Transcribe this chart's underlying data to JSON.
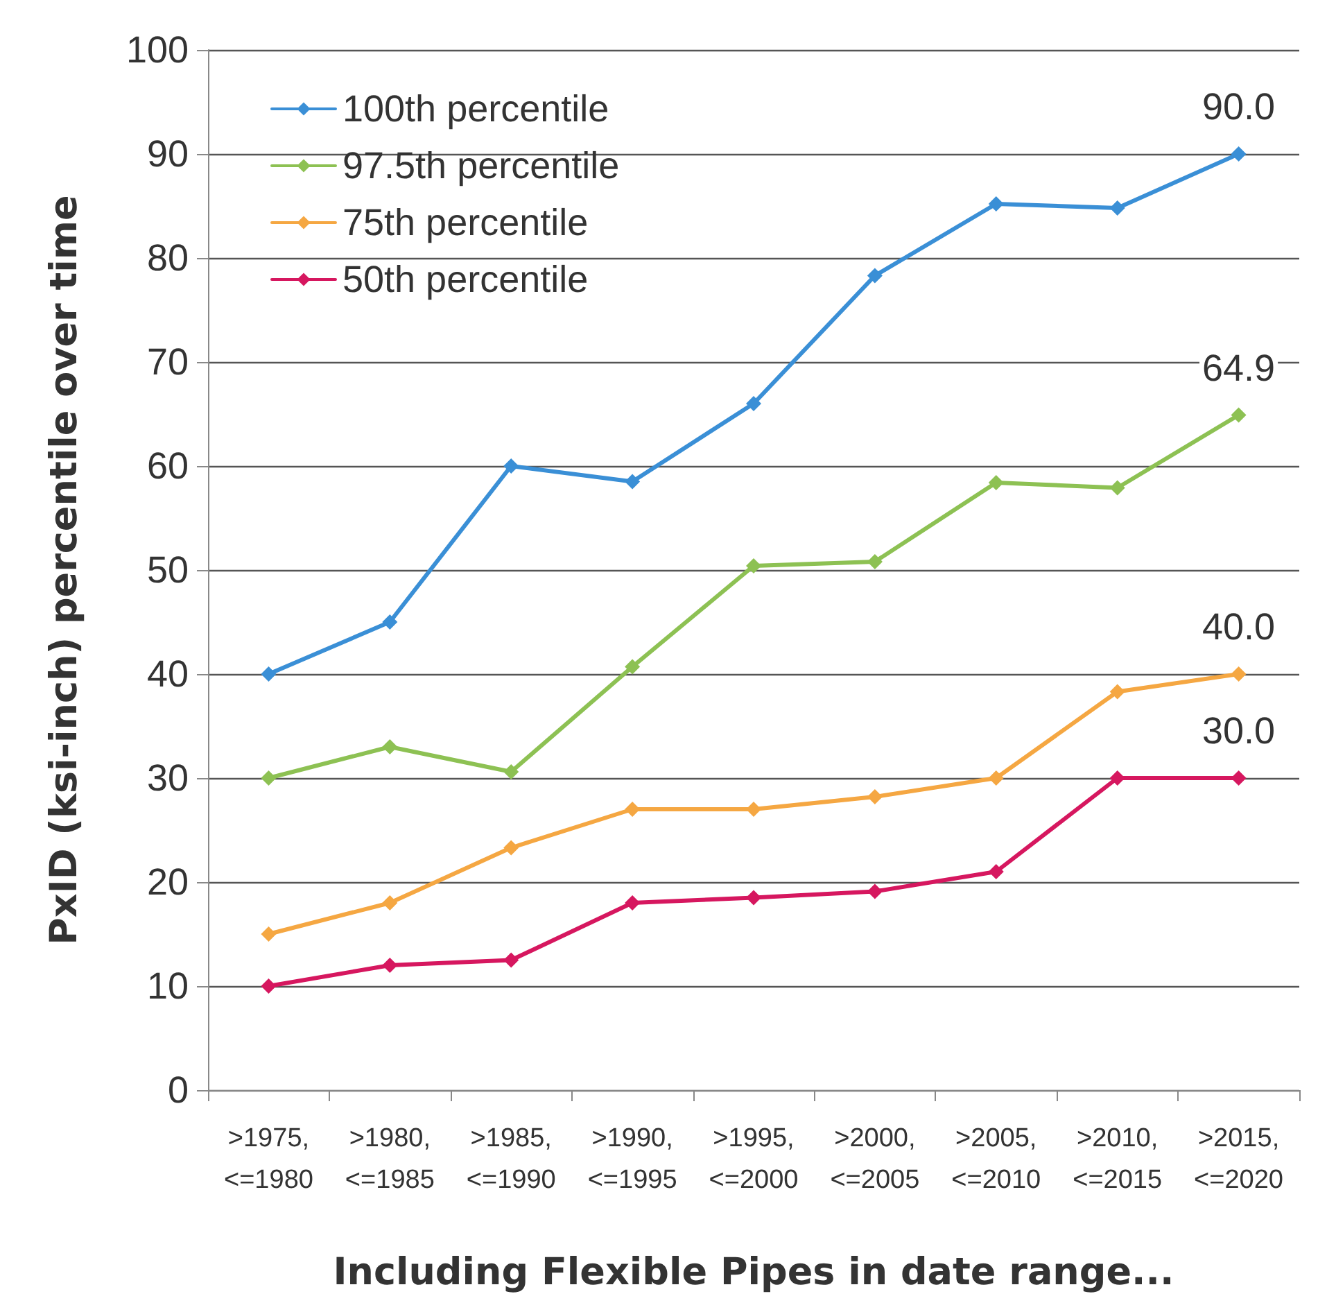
{
  "chart_data": {
    "type": "line",
    "xlabel": "Including Flexible Pipes in date range...",
    "ylabel": "PxID (ksi-inch) percentile over time",
    "categories": [
      ">1975,\n<=1980",
      ">1980,\n<=1985",
      ">1985,\n<=1990",
      ">1990,\n<=1995",
      ">1995,\n<=2000",
      ">2000,\n<=2005",
      ">2005,\n<=2010",
      ">2010,\n<=2015",
      ">2015,\n<=2020"
    ],
    "series": [
      {
        "name": "100th percentile",
        "color": "#3a8fd6",
        "values": [
          40,
          45,
          60,
          58.5,
          66,
          78.3,
          85.2,
          84.8,
          90.0
        ],
        "value_labels": [
          null,
          null,
          null,
          null,
          null,
          null,
          null,
          null,
          "90.0"
        ]
      },
      {
        "name": "97.5th percentile",
        "color": "#8dc153",
        "values": [
          30,
          33,
          30.6,
          40.7,
          50.4,
          50.8,
          58.4,
          57.9,
          64.9
        ],
        "value_labels": [
          null,
          null,
          null,
          null,
          null,
          null,
          null,
          null,
          "64.9"
        ]
      },
      {
        "name": "75th percentile",
        "color": "#f5a742",
        "values": [
          15,
          18,
          23.3,
          27,
          27,
          28.2,
          30,
          38.3,
          40.0
        ],
        "value_labels": [
          null,
          null,
          null,
          null,
          null,
          null,
          null,
          null,
          "40.0"
        ]
      },
      {
        "name": "50th percentile",
        "color": "#d6175f",
        "values": [
          10,
          12,
          12.5,
          18,
          18.5,
          19.1,
          21,
          30,
          30.0
        ],
        "value_labels": [
          null,
          null,
          null,
          null,
          null,
          null,
          null,
          null,
          "30.0"
        ]
      }
    ],
    "ylim": [
      0,
      100
    ],
    "yticks": [
      0,
      10,
      20,
      30,
      40,
      50,
      60,
      70,
      80,
      90,
      100
    ],
    "grid": "y",
    "legend": "top left",
    "marker": "diamond",
    "line_style": "solid"
  }
}
